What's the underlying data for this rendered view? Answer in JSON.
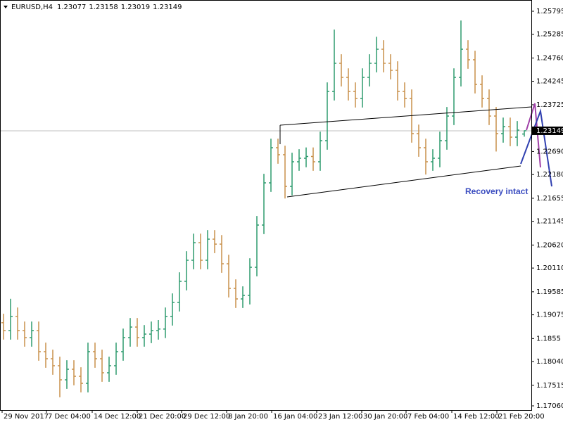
{
  "chart_data": {
    "type": "ohlc",
    "symbol": "EURUSD,H4",
    "annotation": "Recovery intact",
    "up_color": "#2e9a6e",
    "down_color": "#c8904a",
    "open": [
      1.189,
      1.18726,
      1.19037,
      1.18726,
      1.1857,
      1.18726,
      1.18259,
      1.18103,
      1.17948,
      1.17636,
      1.1787,
      1.17714,
      1.17558,
      1.18259,
      1.18103,
      1.17792,
      1.17948,
      1.18259,
      1.1857,
      1.18804,
      1.1857,
      1.18648,
      1.18726,
      1.1876,
      1.19037,
      1.19349,
      1.19816,
      1.20283,
      1.20672,
      1.20283,
      1.2075,
      1.2064,
      1.20205,
      1.1966,
      1.19427,
      1.19505,
      1.20127,
      1.21062,
      1.21996,
      1.22774,
      1.22619,
      1.21918,
      1.22463,
      1.22541,
      1.2258,
      1.22463,
      1.2293,
      1.2402,
      1.24643,
      1.24331,
      1.2402,
      1.23864,
      1.24331,
      1.24643,
      1.24954,
      1.24643,
      1.24487,
      1.2402,
      1.23864,
      1.23086,
      1.22774,
      1.22463,
      1.22541,
      1.2293,
      1.23475,
      1.24331,
      1.24954,
      1.24721,
      1.24176,
      1.23864,
      1.23475,
      1.23086,
      1.23241,
      1.23008,
      1.23077
    ],
    "high": [
      1.191,
      1.1943,
      1.19237,
      1.18926,
      1.18926,
      1.18926,
      1.18459,
      1.18303,
      1.18148,
      1.1807,
      1.1807,
      1.17914,
      1.18459,
      1.18459,
      1.18303,
      1.18148,
      1.18459,
      1.1877,
      1.19004,
      1.19004,
      1.18848,
      1.18926,
      1.1896,
      1.19237,
      1.19549,
      1.20016,
      1.20483,
      1.20872,
      1.20872,
      1.2095,
      1.2095,
      1.2084,
      1.20405,
      1.1986,
      1.19705,
      1.20327,
      1.21262,
      1.22196,
      1.22974,
      1.22974,
      1.22819,
      1.22663,
      1.22741,
      1.2278,
      1.2278,
      1.2313,
      1.2422,
      1.2539,
      1.24843,
      1.24531,
      1.2422,
      1.24531,
      1.24843,
      1.2523,
      1.25154,
      1.24843,
      1.24687,
      1.2422,
      1.24064,
      1.23286,
      1.22974,
      1.22741,
      1.2313,
      1.23675,
      1.24531,
      1.2559,
      1.25154,
      1.24921,
      1.24376,
      1.24064,
      1.23675,
      1.23441,
      1.23441,
      1.23364,
      1.23158
    ],
    "low": [
      1.18526,
      1.18526,
      1.18526,
      1.1837,
      1.1837,
      1.18059,
      1.17903,
      1.17748,
      1.1725,
      1.17436,
      1.17514,
      1.17358,
      1.17358,
      1.17903,
      1.17592,
      1.17592,
      1.17748,
      1.18059,
      1.1837,
      1.1837,
      1.1837,
      1.18448,
      1.18526,
      1.1856,
      1.18837,
      1.19149,
      1.19616,
      1.20083,
      1.20083,
      1.20083,
      1.2044,
      1.20005,
      1.1946,
      1.19227,
      1.19227,
      1.19305,
      1.19927,
      1.20862,
      1.21796,
      1.22419,
      1.2165,
      1.21718,
      1.22263,
      1.22341,
      1.22263,
      1.22263,
      1.2273,
      1.2382,
      1.24131,
      1.2382,
      1.23664,
      1.23664,
      1.24131,
      1.24443,
      1.24443,
      1.24287,
      1.2382,
      1.23664,
      1.22886,
      1.22574,
      1.2218,
      1.22263,
      1.22341,
      1.2273,
      1.23275,
      1.24131,
      1.24521,
      1.23976,
      1.23664,
      1.23275,
      1.2269,
      1.22886,
      1.22808,
      1.22808,
      1.23019
    ],
    "close": [
      1.18726,
      1.19037,
      1.18726,
      1.1857,
      1.18726,
      1.18259,
      1.18103,
      1.17948,
      1.17636,
      1.1787,
      1.17714,
      1.17558,
      1.18259,
      1.18103,
      1.17792,
      1.17948,
      1.18259,
      1.1857,
      1.18804,
      1.1857,
      1.18648,
      1.18726,
      1.1876,
      1.19037,
      1.19349,
      1.19816,
      1.20283,
      1.20672,
      1.20283,
      1.2075,
      1.2064,
      1.20205,
      1.1966,
      1.19427,
      1.19505,
      1.20127,
      1.21062,
      1.21996,
      1.22774,
      1.22619,
      1.21918,
      1.22463,
      1.22541,
      1.2258,
      1.22463,
      1.2293,
      1.2402,
      1.24643,
      1.24331,
      1.2402,
      1.23864,
      1.24331,
      1.24643,
      1.24954,
      1.24643,
      1.24487,
      1.2402,
      1.23864,
      1.23086,
      1.22774,
      1.22463,
      1.22541,
      1.2293,
      1.23475,
      1.24331,
      1.24954,
      1.24721,
      1.24176,
      1.23864,
      1.23475,
      1.23086,
      1.23241,
      1.23008,
      1.23164,
      1.23149
    ],
    "xlim": [
      -0.5,
      75
    ],
    "xticks": [
      {
        "value": -0.2,
        "label": "29 Nov 2017"
      },
      {
        "value": 6.1,
        "label": "7 Dec 04:00"
      },
      {
        "value": 12.6,
        "label": "14 Dec 12:00"
      },
      {
        "value": 19,
        "label": "21 Dec 20:00"
      },
      {
        "value": 25.3,
        "label": "29 Dec 12:00"
      },
      {
        "value": 31.7,
        "label": "8 Jan 20:00"
      },
      {
        "value": 38.1,
        "label": "16 Jan 04:00"
      },
      {
        "value": 44.5,
        "label": "23 Jan 12:00"
      },
      {
        "value": 50.9,
        "label": "30 Jan 20:00"
      },
      {
        "value": 57.2,
        "label": "7 Feb 04:00"
      },
      {
        "value": 63.7,
        "label": "14 Feb 12:00"
      },
      {
        "value": 70.1,
        "label": "21 Feb 20:00"
      }
    ],
    "ylim": [
      1.16967,
      1.26044
    ],
    "yticks": [
      1.25795,
      1.25285,
      {
        "value": 1.2476,
        "label": "1.24760"
      },
      1.24245,
      1.23725,
      {
        "value": 1.2269,
        "label": "1.22690"
      },
      {
        "value": 1.2218,
        "label": "1.22180"
      },
      1.21655,
      1.21145,
      {
        "value": 1.2062,
        "label": "1.20620"
      },
      {
        "value": 1.2011,
        "label": "1.20110"
      },
      1.19585,
      1.19075,
      1.1855,
      {
        "value": 1.1804,
        "label": "1.18040"
      },
      1.17515,
      {
        "value": 1.1706,
        "label": "1.17060"
      }
    ]
  }
}
